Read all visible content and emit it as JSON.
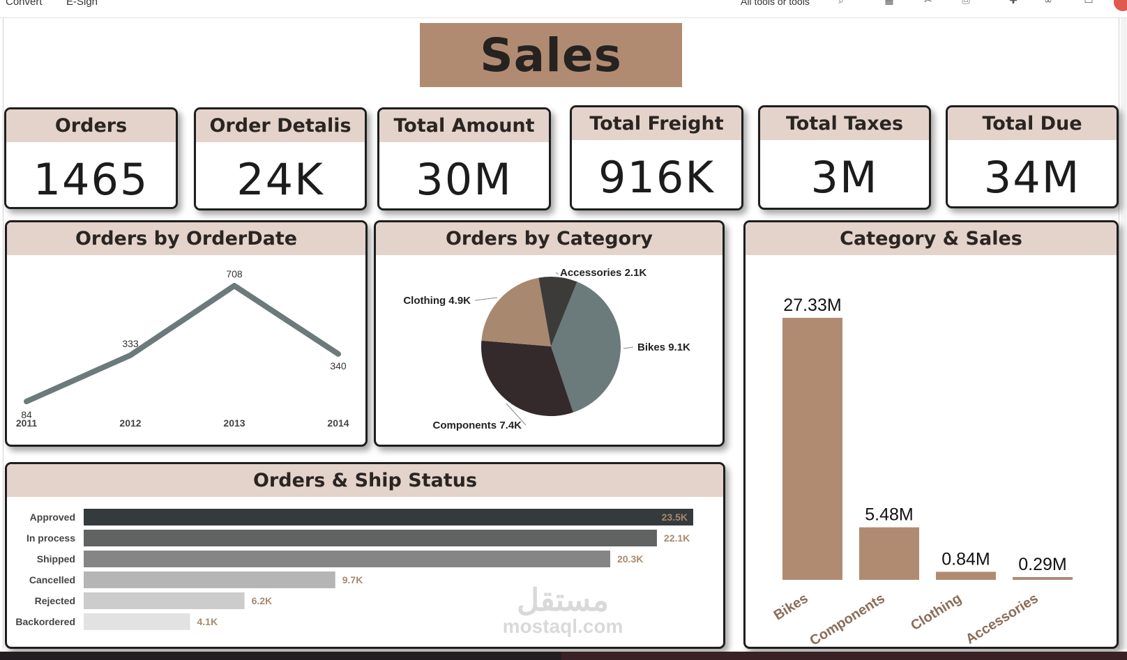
{
  "toolbar": {
    "menu": [
      "Convert",
      "E-Sign"
    ],
    "tools_text": "All tools or tools"
  },
  "dashboard": {
    "title": "Sales"
  },
  "kpis": [
    {
      "label": "Orders",
      "value": "1465"
    },
    {
      "label": "Order Detalis",
      "value": "24K"
    },
    {
      "label": "Total Amount",
      "value": "30M"
    },
    {
      "label": "Total Freight",
      "value": "916K"
    },
    {
      "label": "Total Taxes",
      "value": "3M"
    },
    {
      "label": "Total Due",
      "value": "34M"
    }
  ],
  "watermark": {
    "arabic": "مستقل",
    "latin": "mostaql.com"
  },
  "colors": {
    "banner": "#b08b72",
    "card_header": "#e3d3ca",
    "line": "#6b7a7a",
    "bar_category": "#b08b72",
    "label_accent": "#a8896d"
  },
  "chart_data": [
    {
      "type": "line",
      "title": "Orders by OrderDate",
      "x": [
        "2011",
        "2012",
        "2013",
        "2014"
      ],
      "series": [
        {
          "values": [
            84,
            333,
            708,
            340
          ],
          "color": "#6b7a7a"
        }
      ],
      "data_labels": [
        "84",
        "333",
        "708",
        "340"
      ],
      "grid": false
    },
    {
      "type": "pie",
      "title": "Orders by Category",
      "slices": [
        {
          "name": "Bikes",
          "value": 9.1,
          "label": "Bikes 9.1K",
          "color": "#6b7a7a"
        },
        {
          "name": "Components",
          "value": 7.4,
          "label": "Components 7.4K",
          "color": "#342a2b"
        },
        {
          "name": "Clothing",
          "value": 4.9,
          "label": "Clothing 4.9K",
          "color": "#a8886f"
        },
        {
          "name": "Accessories",
          "value": 2.1,
          "label": "Accessories 2.1K",
          "color": "#3d3a3a"
        }
      ]
    },
    {
      "type": "bar",
      "title": "Category & Sales",
      "categories": [
        "Bikes",
        "Components",
        "Clothing",
        "Accessories"
      ],
      "values": [
        27.33,
        5.48,
        0.84,
        0.29
      ],
      "data_labels": [
        "27.33M",
        "5.48M",
        "0.84M",
        "0.29M"
      ],
      "ylim": [
        0,
        27.33
      ],
      "color": "#b08b72",
      "grid": false
    },
    {
      "type": "bar",
      "orientation": "horizontal",
      "title": "Orders & Ship Status",
      "categories": [
        "Approved",
        "In process",
        "Shipped",
        "Cancelled",
        "Rejected",
        "Backordered"
      ],
      "values": [
        23.5,
        22.1,
        20.3,
        9.7,
        6.2,
        4.1
      ],
      "data_labels": [
        "23.5K",
        "22.1K",
        "20.3K",
        "9.7K",
        "6.2K",
        "4.1K"
      ],
      "colors": [
        "#353a3c",
        "#616262",
        "#858585",
        "#b5b5b5",
        "#cccccc",
        "#e2e2e2"
      ],
      "xlim": [
        0,
        23.5
      ],
      "grid": false
    }
  ]
}
